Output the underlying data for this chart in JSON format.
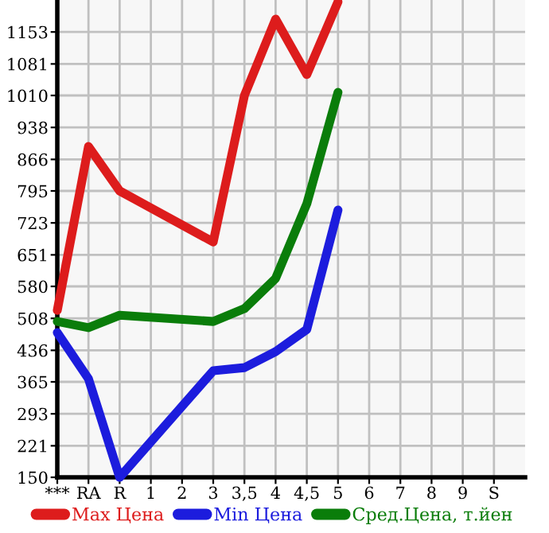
{
  "chart_data": {
    "type": "line",
    "categories": [
      "***",
      "RA",
      "R",
      "1",
      "2",
      "3",
      "3,5",
      "4",
      "4,5",
      "5",
      "6",
      "7",
      "8",
      "9",
      "S"
    ],
    "series": [
      {
        "name": "Max Цена",
        "color": "#dd1c1c",
        "values": [
          526,
          895,
          795,
          null,
          null,
          680,
          1010,
          1182,
          1057,
          1221,
          null,
          null,
          null,
          null,
          null
        ]
      },
      {
        "name": "Min Цена",
        "color": "#1c1cdd",
        "values": [
          476,
          372,
          150,
          null,
          null,
          390,
          397,
          433,
          483,
          752,
          null,
          null,
          null,
          null,
          null
        ]
      },
      {
        "name": "Сред.Цена, т.йен",
        "color": "#0a7d0a",
        "values": [
          501,
          487,
          515,
          null,
          null,
          501,
          530,
          598,
          766,
          1017,
          null,
          null,
          null,
          null,
          null
        ]
      }
    ],
    "ylim": [
      150,
      1225
    ],
    "yticks": [
      150,
      221,
      293,
      365,
      436,
      508,
      580,
      651,
      723,
      795,
      866,
      938,
      1010,
      1081,
      1153
    ],
    "grid": true,
    "legend": "bottom",
    "marker": "none",
    "line_style": "solid"
  }
}
